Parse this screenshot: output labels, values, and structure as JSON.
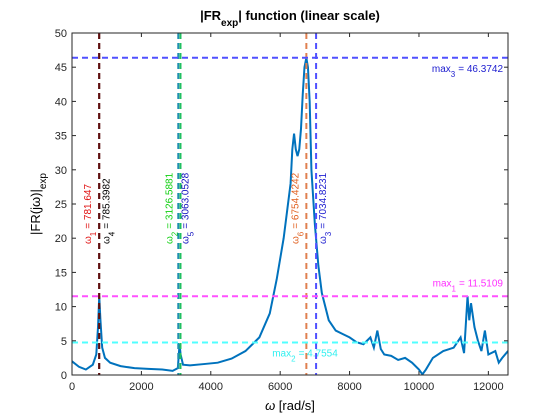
{
  "chart_data": {
    "type": "line",
    "title": {
      "main": "|FR",
      "sub": "exp",
      "rest": "| function (linear scale)"
    },
    "x_label": {
      "symbol": "ω",
      "rest": " [rad/s]"
    },
    "y_label": {
      "main": "|FR(jω)|",
      "sub": "exp"
    },
    "color": "#0072bd",
    "x": [
      0,
      200,
      400,
      600,
      700,
      750,
      785,
      820,
      870,
      950,
      1100,
      1400,
      1800,
      2200,
      2600,
      2900,
      3050,
      3100,
      3130,
      3200,
      3400,
      3800,
      4200,
      4600,
      5000,
      5400,
      5700,
      5900,
      6100,
      6200,
      6300,
      6350,
      6400,
      6450,
      6500,
      6550,
      6600,
      6650,
      6700,
      6754,
      6800,
      6850,
      6900,
      7000,
      7100,
      7200,
      7400,
      7600,
      7800,
      8000,
      8200,
      8400,
      8600,
      8700,
      8800,
      8900,
      9000,
      9200,
      9400,
      9600,
      9800,
      10000,
      10100,
      10200,
      10400,
      10700,
      11000,
      11200,
      11300,
      11400,
      11450,
      11500,
      11600,
      11700,
      11800,
      11900,
      12000,
      12200,
      12300,
      12400,
      12566
    ],
    "values": [
      2.0,
      1.2,
      0.8,
      1.5,
      3,
      7,
      11.5,
      8,
      4,
      2.5,
      1.8,
      1.3,
      1.0,
      0.9,
      0.8,
      0.6,
      1.0,
      4.5,
      3,
      1.5,
      1.4,
      1.6,
      1.8,
      2.4,
      3.5,
      5.5,
      9,
      14,
      20,
      24,
      28,
      33,
      35.3,
      33,
      32,
      33,
      36,
      41,
      45,
      46.37,
      45,
      40,
      30,
      22,
      16,
      12,
      8,
      6.5,
      6,
      5.5,
      4.8,
      4.5,
      5.5,
      4,
      6.5,
      3.8,
      3,
      2.8,
      2.2,
      2.5,
      1.8,
      0.8,
      0.1,
      0.8,
      2.5,
      3.5,
      4,
      5.5,
      3.2,
      11.5,
      8,
      10.5,
      7,
      5,
      3.5,
      6.5,
      3,
      3.5,
      1.8,
      2.5,
      3.5
    ],
    "xlim": [
      0,
      12566
    ],
    "ylim": [
      0,
      50
    ],
    "xticks": [
      0,
      2000,
      4000,
      6000,
      8000,
      10000,
      12000
    ],
    "yticks": [
      0,
      5,
      10,
      15,
      20,
      25,
      30,
      35,
      40,
      45,
      50
    ],
    "markers": [
      {
        "symbol": "ω",
        "sub": "1",
        "value": 781.647,
        "label": "= 781.647",
        "color": "#e01010",
        "line_color": "#8b1a1a"
      },
      {
        "symbol": "ω",
        "sub": "4",
        "value": 785.3982,
        "label": "= 785.3982",
        "color": "#000000",
        "line_color": "#5a1010"
      },
      {
        "symbol": "ω",
        "sub": "2",
        "value": 3126.5881,
        "label": "= 3126.5881",
        "color": "#10d010",
        "line_color": "#20c060"
      },
      {
        "symbol": "ω",
        "sub": "5",
        "value": 3063.0528,
        "label": "= 3063.0528",
        "color": "#1010c0",
        "line_color": "#2090b0"
      },
      {
        "symbol": "ω",
        "sub": "6",
        "value": 6754.4242,
        "label": "= 6754.4242",
        "color": "#e06020",
        "line_color": "#e08050"
      },
      {
        "symbol": "ω",
        "sub": "3",
        "value": 7034.8231,
        "label": "= 7034.8231",
        "color": "#2020d0",
        "line_color": "#5050ff"
      }
    ],
    "hlines": [
      {
        "symbol": "max",
        "sub": "3",
        "value": 46.3742,
        "label": "= 46.3742",
        "color": "#2020d0",
        "line_color": "#5050ff"
      },
      {
        "symbol": "max",
        "sub": "1",
        "value": 11.5109,
        "label": "= 11.5109",
        "color": "#ff30ff",
        "line_color": "#ff50ff"
      },
      {
        "symbol": "max",
        "sub": "2",
        "value": 4.7554,
        "label": "= 4.7554",
        "color": "#30f0f0",
        "line_color": "#50ffff"
      }
    ]
  }
}
